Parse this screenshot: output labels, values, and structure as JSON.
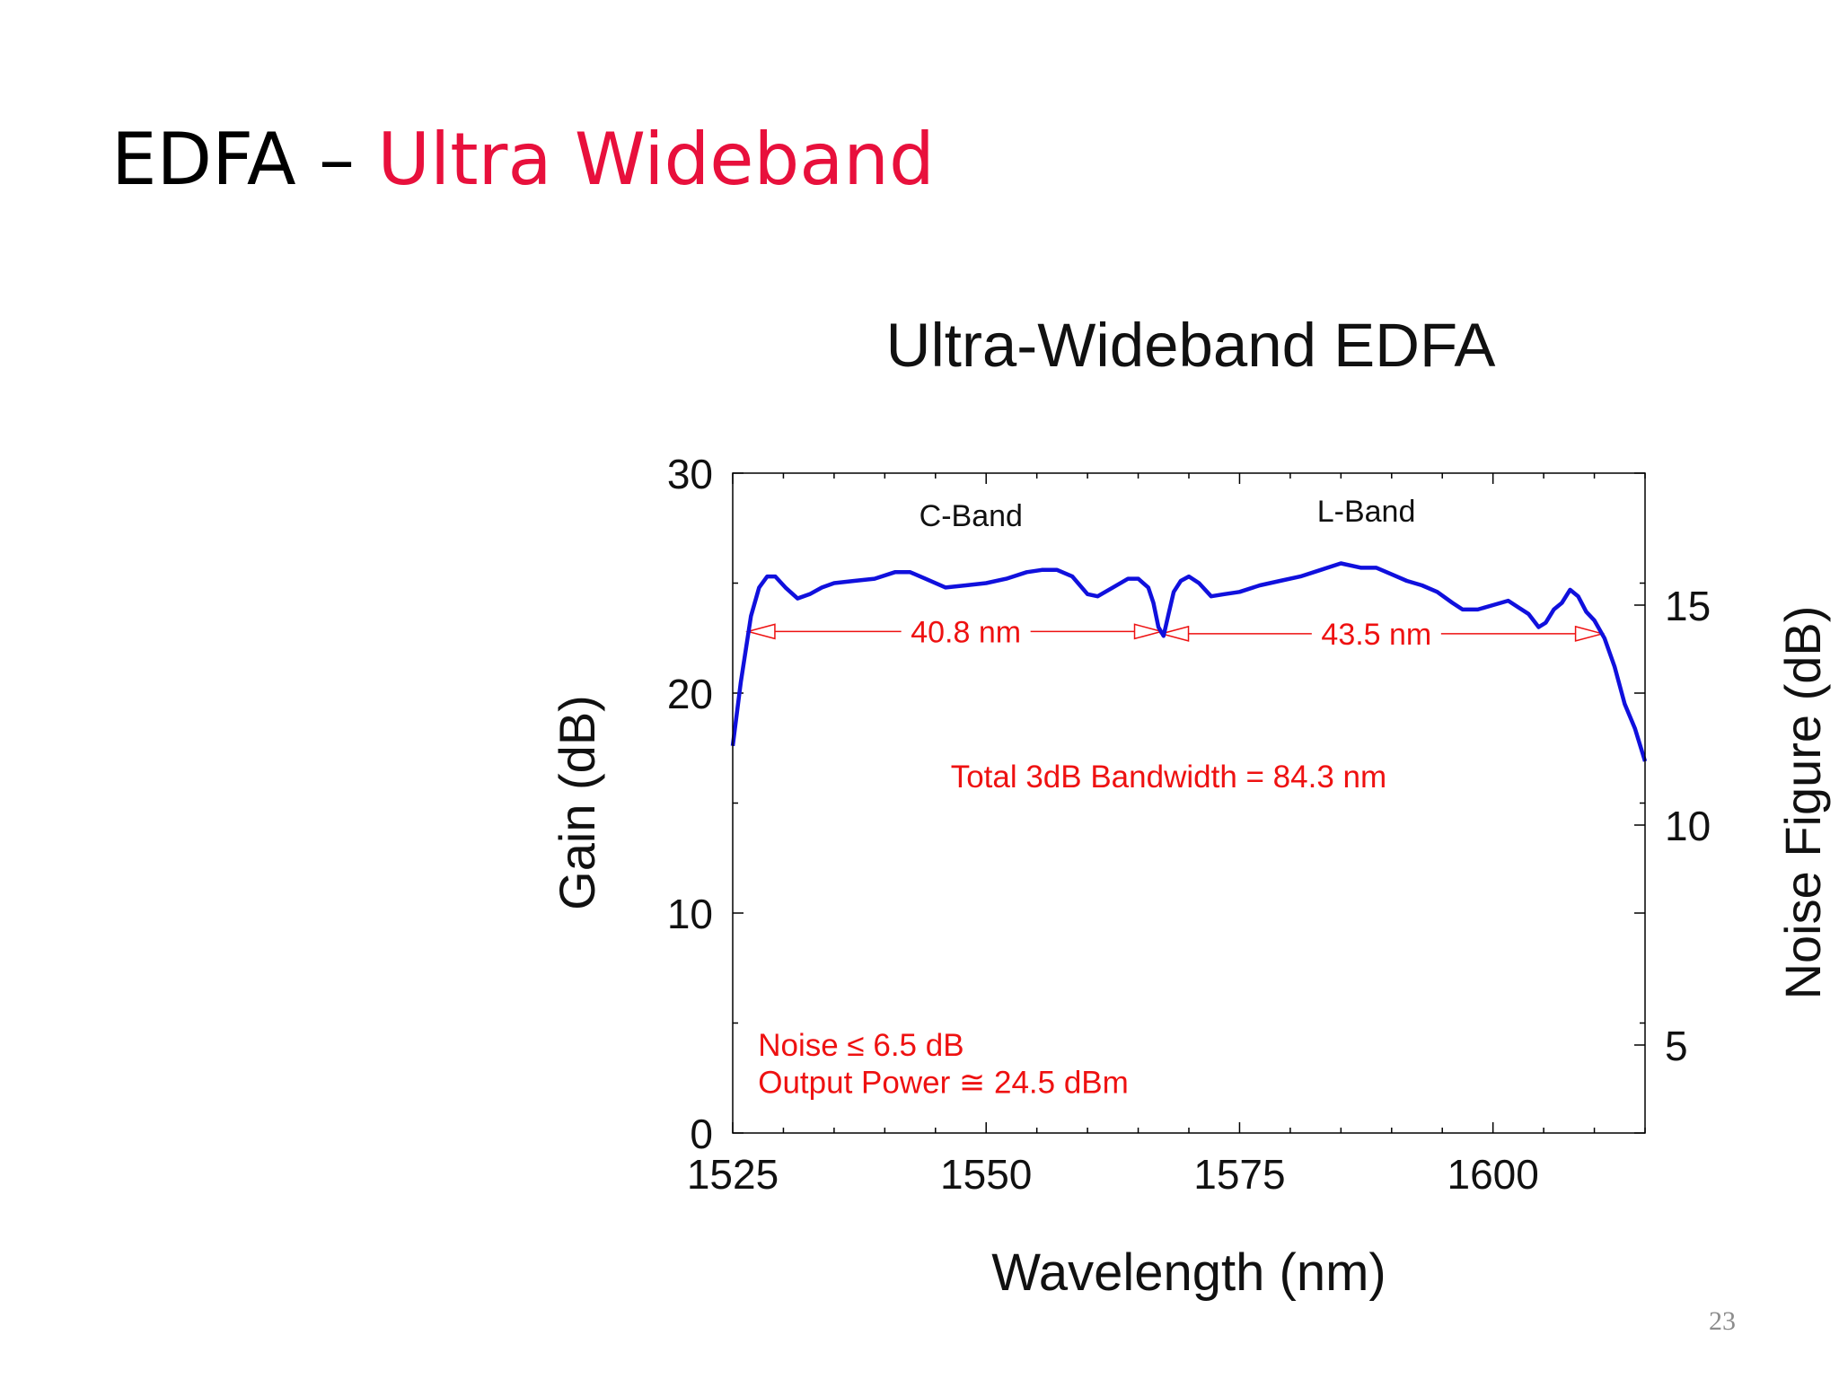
{
  "slide": {
    "title_main": "EDFA – ",
    "title_accent": "Ultra Wideband",
    "page_number": "23",
    "accent_color": "#e8103c"
  },
  "chart_data": {
    "type": "line",
    "title": "Ultra-Wideband EDFA",
    "xlabel": "Wavelength (nm)",
    "ylabel": "Gain (dB)",
    "y2label": "Noise Figure (dB)",
    "xlim": [
      1525,
      1615
    ],
    "ylim": [
      0,
      30
    ],
    "y2lim": [
      3,
      18
    ],
    "x_ticks": [
      1525,
      1550,
      1575,
      1600
    ],
    "y_ticks": [
      0,
      10,
      20,
      30
    ],
    "y2_ticks": [
      5,
      10,
      15
    ],
    "grid": false,
    "line_color": "#1010dd",
    "annotation_color": "#ee1111",
    "series": [
      {
        "x": [
          1525,
          1525.8,
          1526.8,
          1527.6,
          1528.4,
          1529.2,
          1530.2,
          1531.4,
          1532.6,
          1533.8,
          1535,
          1537,
          1539,
          1541,
          1542.5,
          1544,
          1546,
          1548,
          1550,
          1552,
          1554,
          1555.5,
          1557,
          1558.5,
          1560,
          1561,
          1562.5,
          1564,
          1565,
          1566,
          1566.5,
          1567,
          1567.5,
          1568,
          1568.5,
          1569.2,
          1570,
          1571,
          1572.2,
          1573.5,
          1575,
          1577,
          1579,
          1581,
          1583,
          1585,
          1587,
          1588.5,
          1590,
          1591.5,
          1593,
          1594.5,
          1596,
          1597,
          1598.5,
          1600,
          1601.5,
          1602.5,
          1603.5,
          1604.5,
          1605.2,
          1606,
          1606.8,
          1607.6,
          1608.4,
          1609.2,
          1610,
          1611,
          1612,
          1613,
          1614,
          1615
        ],
        "y": [
          17.6,
          20.5,
          23.5,
          24.8,
          25.3,
          25.3,
          24.8,
          24.3,
          24.5,
          24.8,
          25.0,
          25.1,
          25.2,
          25.5,
          25.5,
          25.2,
          24.8,
          24.9,
          25.0,
          25.2,
          25.5,
          25.6,
          25.6,
          25.3,
          24.5,
          24.4,
          24.8,
          25.2,
          25.2,
          24.8,
          24.1,
          23.0,
          22.6,
          23.6,
          24.6,
          25.1,
          25.3,
          25.0,
          24.4,
          24.5,
          24.6,
          24.9,
          25.1,
          25.3,
          25.6,
          25.9,
          25.7,
          25.7,
          25.4,
          25.1,
          24.9,
          24.6,
          24.1,
          23.8,
          23.8,
          24.0,
          24.2,
          23.9,
          23.6,
          23.0,
          23.2,
          23.8,
          24.1,
          24.7,
          24.4,
          23.7,
          23.3,
          22.5,
          21.2,
          19.5,
          18.4,
          16.9
        ]
      }
    ],
    "band_labels": [
      {
        "text": "C-Band",
        "x": 1548.5,
        "y": 27.6
      },
      {
        "text": "L-Band",
        "x": 1587.5,
        "y": 27.8
      }
    ],
    "bandwidth_markers": [
      {
        "label": "40.8 nm",
        "x_start": 1526.5,
        "x_end": 1567.3,
        "y": 22.8,
        "label_x": 1548
      },
      {
        "label": "43.5 nm",
        "x_start": 1567.3,
        "x_end": 1610.8,
        "y": 22.7,
        "label_x": 1588.5
      }
    ],
    "total_bandwidth_text": {
      "text": "Total 3dB Bandwidth = 84.3 nm",
      "x": 1568,
      "y": 16.2
    },
    "notes": [
      {
        "text": "Noise ≤ 6.5 dB",
        "x": 1527.5,
        "y": 4.0
      },
      {
        "text": "Output Power ≅ 24.5 dBm",
        "x": 1527.5,
        "y": 2.3
      }
    ]
  }
}
